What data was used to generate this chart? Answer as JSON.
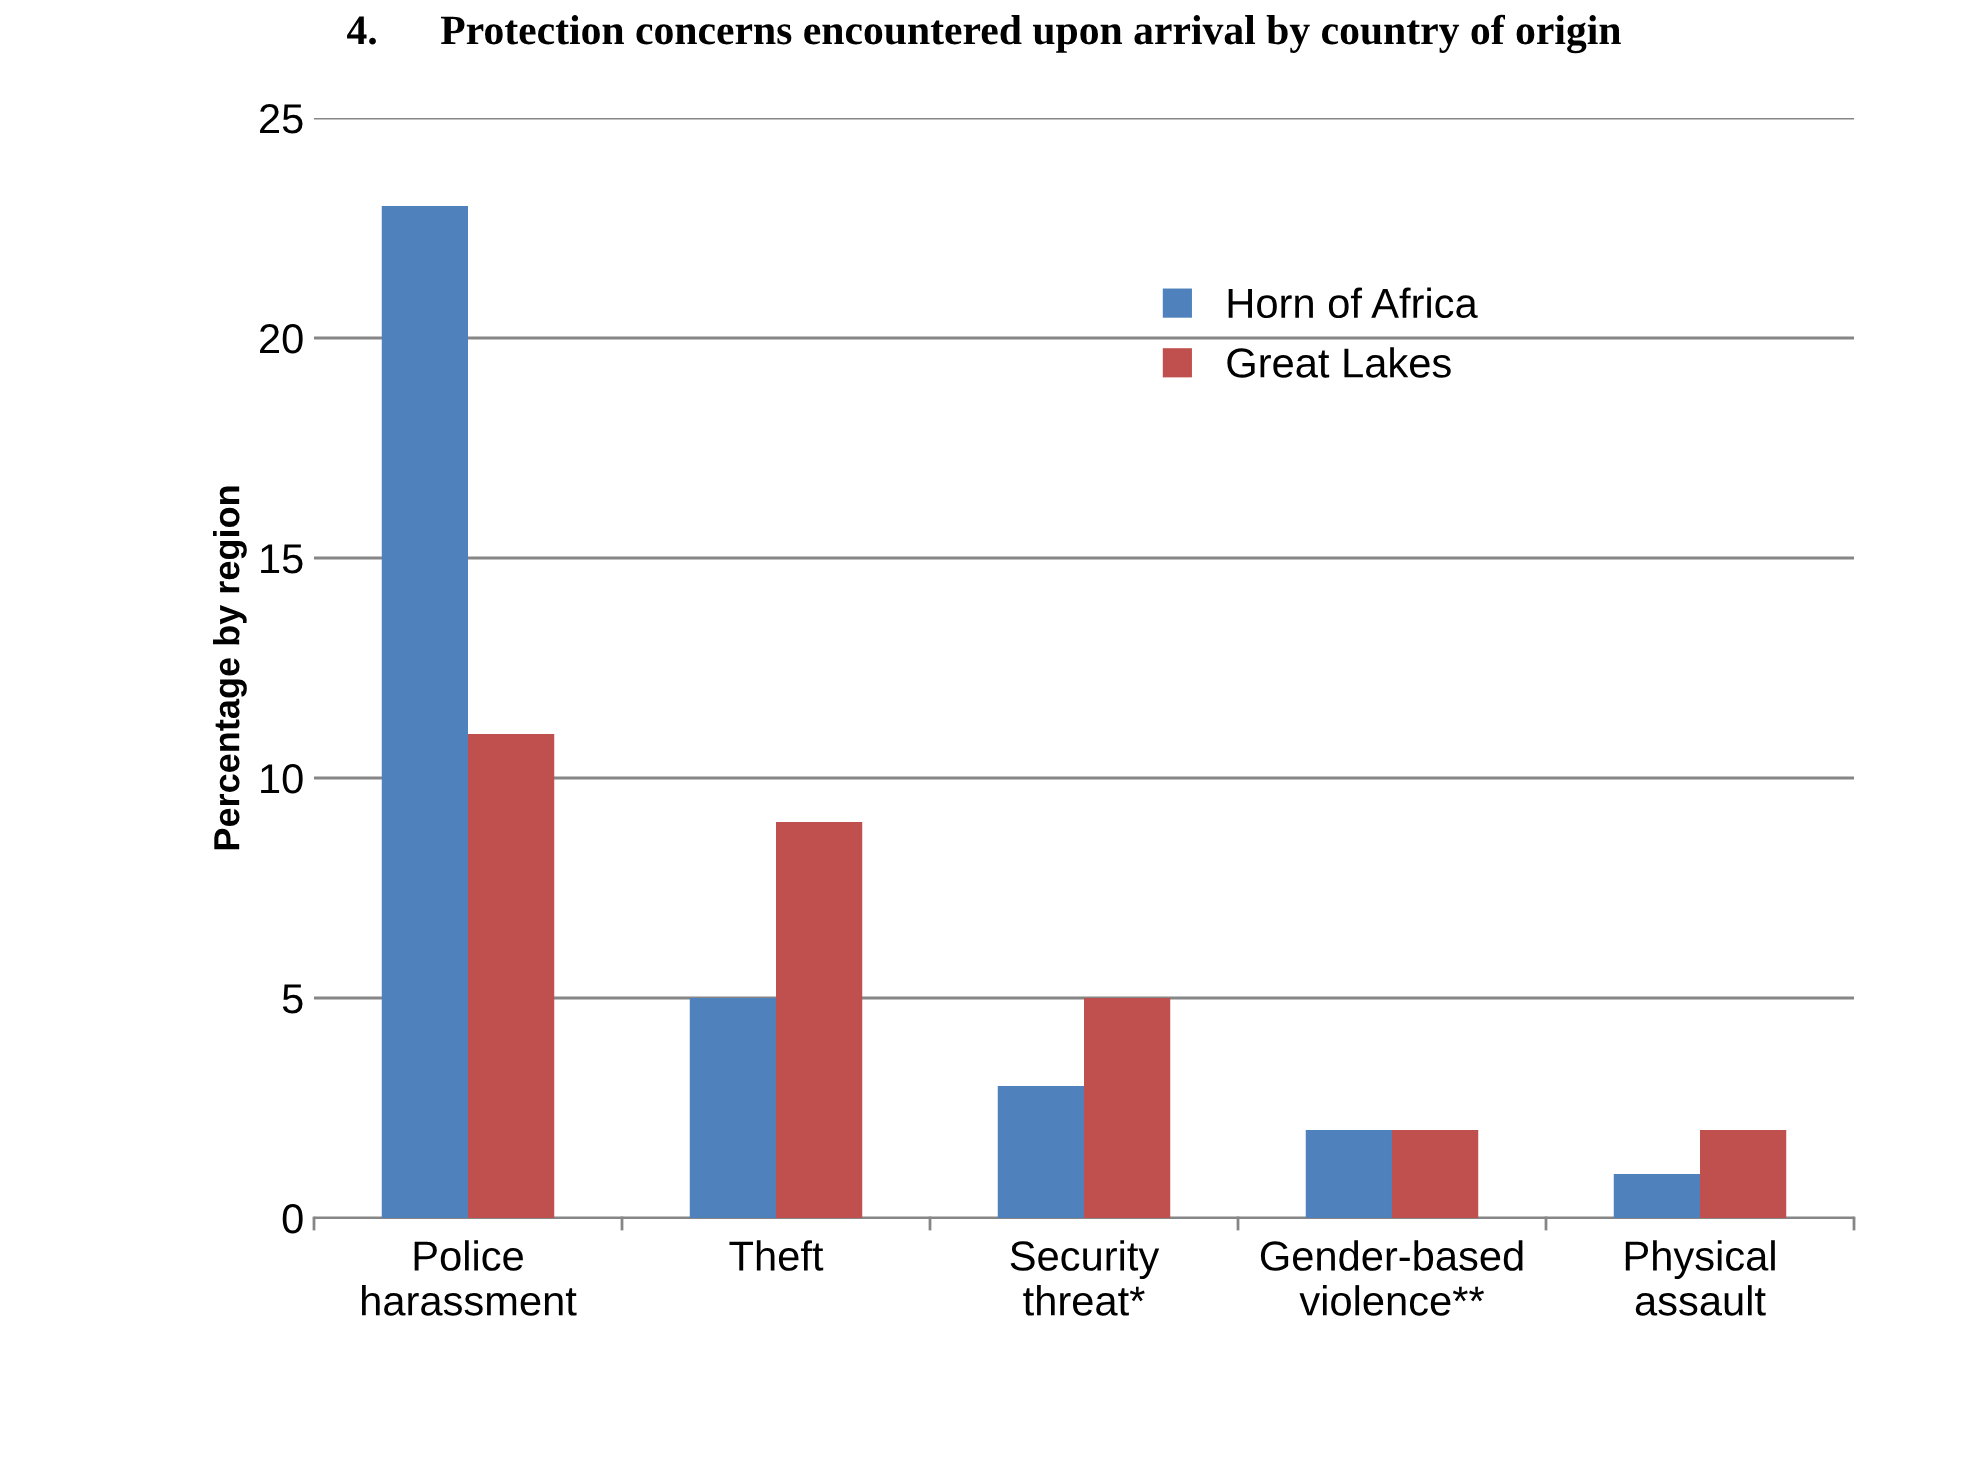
{
  "chart_data": {
    "type": "bar",
    "title": "4.      Protection concerns encountered upon arrival by country of origin",
    "ylabel": "Percentage by region",
    "categories": [
      "Police\nharassment",
      "Theft",
      "Security\nthreat*",
      "Gender-based\nviolence**",
      "Physical\nassault"
    ],
    "series": [
      {
        "name": "Horn of Africa",
        "color": "#4f81bd",
        "values": [
          23,
          5,
          3,
          2,
          1
        ]
      },
      {
        "name": "Great Lakes",
        "color": "#c0504d",
        "values": [
          11,
          9,
          5,
          2,
          2
        ]
      }
    ],
    "ylim": [
      0,
      25
    ],
    "yticks": [
      0,
      5,
      10,
      15,
      20,
      25
    ],
    "grid": "y",
    "legend": "top right"
  }
}
